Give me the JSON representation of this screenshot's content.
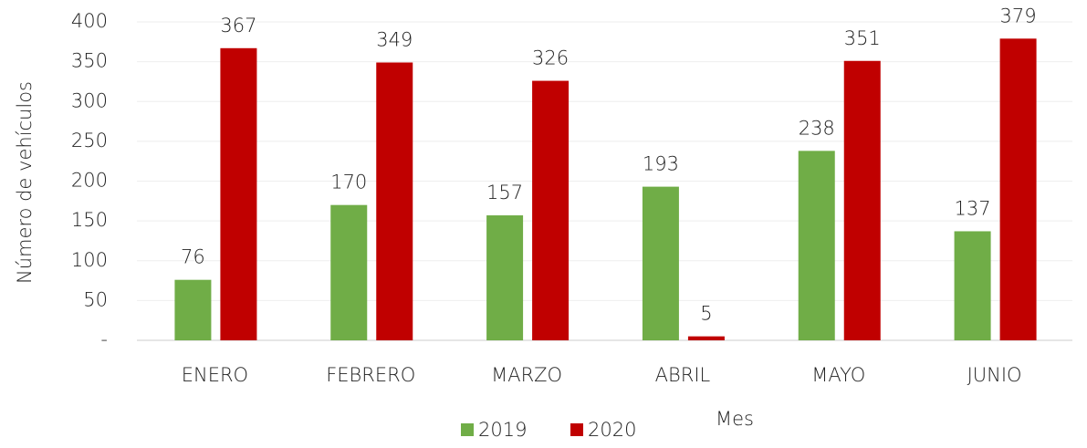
{
  "chart_data": {
    "type": "bar",
    "categories": [
      "ENERO",
      "FEBRERO",
      "MARZO",
      "ABRIL",
      "MAYO",
      "JUNIO"
    ],
    "series": [
      {
        "name": "2019",
        "color": "#70ad47",
        "values": [
          76,
          170,
          157,
          193,
          238,
          137
        ]
      },
      {
        "name": "2020",
        "color": "#c00000",
        "values": [
          367,
          349,
          326,
          5,
          351,
          379
        ]
      }
    ],
    "x_label": "Mes",
    "y_label": "Número de vehículos",
    "ylim": [
      0,
      400
    ],
    "yticks": [
      {
        "value": 0,
        "label": "-"
      },
      50,
      100,
      150,
      200,
      250,
      300,
      350,
      400
    ],
    "grid": true,
    "legend": "bottom"
  }
}
